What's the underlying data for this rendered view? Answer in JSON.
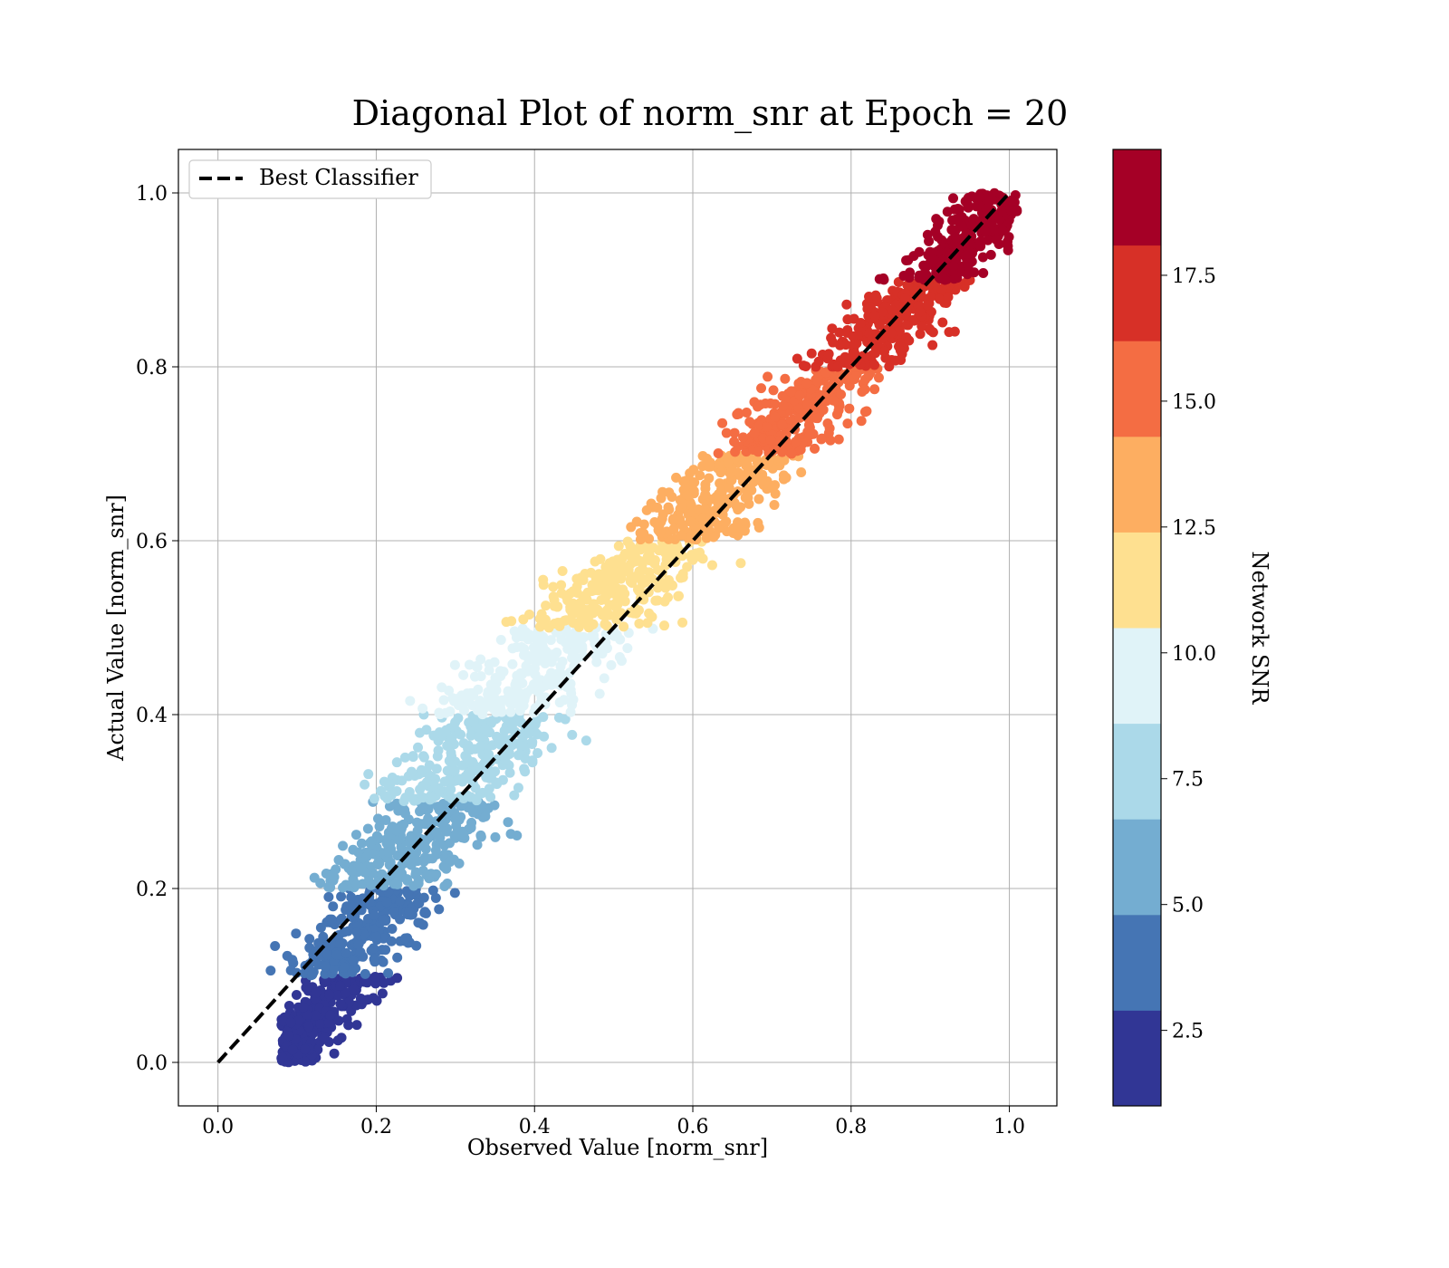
{
  "chart_data": {
    "type": "scatter",
    "title": "Diagonal Plot of norm_snr at Epoch = 20",
    "xlabel": "Observed Value [norm_snr]",
    "ylabel": "Actual Value [norm_snr]",
    "xlim": [
      -0.05,
      1.06
    ],
    "ylim": [
      -0.05,
      1.05
    ],
    "x_ticks": [
      "0.0",
      "0.2",
      "0.4",
      "0.6",
      "0.8",
      "1.0"
    ],
    "y_ticks": [
      "0.0",
      "0.2",
      "0.4",
      "0.6",
      "0.8",
      "1.0"
    ],
    "grid": true,
    "legend": {
      "placement": "upper-left",
      "entries": [
        {
          "label": "Best Classifier",
          "style": "dashed",
          "color": "#000000"
        }
      ]
    },
    "reference_line": {
      "label": "Best Classifier",
      "x": [
        0.0,
        1.0
      ],
      "y": [
        0.0,
        1.0
      ]
    },
    "colorbar": {
      "label": "Network SNR",
      "range": [
        1.0,
        20.0
      ],
      "ticks": [
        "2.5",
        "5.0",
        "7.5",
        "10.0",
        "12.5",
        "15.0",
        "17.5"
      ],
      "bands": [
        {
          "color": "#313695",
          "y_range": [
            0.0,
            0.1
          ],
          "x_center_offset": 0.07,
          "x_spread": 0.09
        },
        {
          "color": "#4575b4",
          "y_range": [
            0.1,
            0.2
          ],
          "x_center_offset": 0.03,
          "x_spread": 0.11
        },
        {
          "color": "#74add1",
          "y_range": [
            0.2,
            0.3
          ],
          "x_center_offset": -0.005,
          "x_spread": 0.13
        },
        {
          "color": "#abd9e9",
          "y_range": [
            0.3,
            0.4
          ],
          "x_center_offset": -0.03,
          "x_spread": 0.14
        },
        {
          "color": "#e0f3f8",
          "y_range": [
            0.4,
            0.5
          ],
          "x_center_offset": -0.05,
          "x_spread": 0.14
        },
        {
          "color": "#fee090",
          "y_range": [
            0.5,
            0.6
          ],
          "x_center_offset": -0.04,
          "x_spread": 0.13
        },
        {
          "color": "#fdae61",
          "y_range": [
            0.6,
            0.7
          ],
          "x_center_offset": -0.02,
          "x_spread": 0.12
        },
        {
          "color": "#f46d43",
          "y_range": [
            0.7,
            0.8
          ],
          "x_center_offset": -0.01,
          "x_spread": 0.11
        },
        {
          "color": "#d73027",
          "y_range": [
            0.8,
            0.9
          ],
          "x_center_offset": 0.0,
          "x_spread": 0.1
        },
        {
          "color": "#a50026",
          "y_range": [
            0.9,
            1.0
          ],
          "x_center_offset": 0.0,
          "x_spread": 0.09
        }
      ]
    }
  }
}
